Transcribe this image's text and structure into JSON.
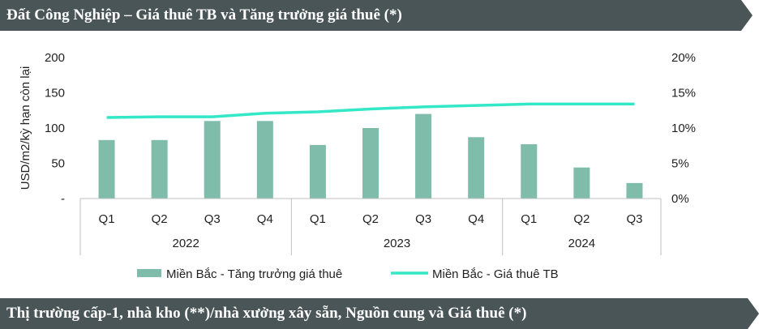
{
  "header": {
    "title": "Đất Công Nghiệp – Giá thuê TB và Tăng trưởng giá thuê (*)"
  },
  "footer": {
    "title": "Thị trường cấp-1, nhà kho (**)/nhà xưởng xây sẵn, Nguồn cung và Giá thuê (*)"
  },
  "colors": {
    "bar": "#7fbcaa",
    "line": "#33e8c6",
    "banner": "#4a5557"
  },
  "chart_data": {
    "type": "bar",
    "title": "",
    "ylabel": "USD/m2/kỳ hạn còn lại",
    "ylim": [
      0,
      200
    ],
    "y_ticks": [
      "200",
      "150",
      "100",
      "50",
      "-"
    ],
    "y_tick_values": [
      200,
      150,
      100,
      50,
      0
    ],
    "y2lim": [
      0,
      20
    ],
    "y2_ticks": [
      "20%",
      "15%",
      "10%",
      "5%",
      "0%"
    ],
    "y2_tick_values": [
      20,
      15,
      10,
      5,
      0
    ],
    "categories": [
      "Q1",
      "Q2",
      "Q3",
      "Q4",
      "Q1",
      "Q2",
      "Q3",
      "Q4",
      "Q1",
      "Q2",
      "Q3"
    ],
    "groups": [
      {
        "label": "2022",
        "count": 4
      },
      {
        "label": "2023",
        "count": 4
      },
      {
        "label": "2024",
        "count": 3
      }
    ],
    "series": [
      {
        "name": "Miền Bắc - Tăng trưởng giá thuê",
        "type": "bar",
        "axis": "left",
        "values": [
          83,
          83,
          110,
          110,
          76,
          100,
          120,
          87,
          77,
          44,
          22
        ]
      },
      {
        "name": "Miền Bắc - Giá thuê TB",
        "type": "line",
        "axis": "right",
        "values": [
          11.5,
          11.6,
          11.6,
          12.1,
          12.3,
          12.7,
          13.0,
          13.2,
          13.4,
          13.4,
          13.4
        ]
      }
    ],
    "legend_position": "bottom",
    "grid": false
  }
}
